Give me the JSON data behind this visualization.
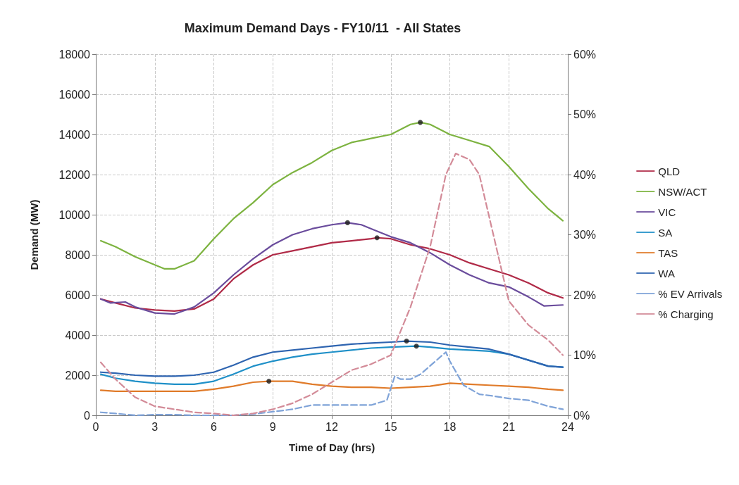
{
  "chart_data": {
    "type": "line",
    "title": "Maximum Demand Days - FY10/11  - All States",
    "xlabel": "Time of Day (hrs)",
    "ylabel": "Demand (MW)",
    "xlim": [
      0,
      24
    ],
    "xticks": [
      0,
      3,
      6,
      9,
      12,
      15,
      18,
      21,
      24
    ],
    "ylim": [
      0,
      18000
    ],
    "yticks": [
      0,
      2000,
      4000,
      6000,
      8000,
      10000,
      12000,
      14000,
      16000,
      18000
    ],
    "y2lim": [
      0,
      60
    ],
    "y2ticks": [
      {
        "value": 0,
        "label": "0%"
      },
      {
        "value": 10,
        "label": "10%"
      },
      {
        "value": 20,
        "label": "20%"
      },
      {
        "value": 30,
        "label": "30%"
      },
      {
        "value": 40,
        "label": "40%"
      },
      {
        "value": 50,
        "label": "50%"
      },
      {
        "value": 60,
        "label": "60%"
      }
    ],
    "grid": true,
    "legend": "right",
    "marker": "none",
    "line_style": "solid",
    "series": [
      {
        "name": "QLD",
        "color": "#b02a47",
        "x": [
          0.25,
          1,
          2,
          3,
          4,
          5,
          6,
          7,
          8,
          9,
          10,
          11,
          12,
          13,
          14,
          14.3,
          15,
          16,
          17,
          18,
          19,
          20,
          21,
          22,
          23,
          23.75
        ],
        "values": [
          5800,
          5600,
          5350,
          5250,
          5200,
          5300,
          5800,
          6800,
          7500,
          8000,
          8200,
          8400,
          8600,
          8700,
          8800,
          8850,
          8800,
          8500,
          8300,
          8000,
          7600,
          7300,
          7000,
          6600,
          6100,
          5850
        ]
      },
      {
        "name": "NSW/ACT",
        "color": "#7db340",
        "x": [
          0.25,
          1,
          2,
          3,
          3.5,
          4,
          5,
          6,
          7,
          8,
          9,
          10,
          11,
          12,
          13,
          14,
          15,
          16,
          16.5,
          17,
          18,
          19,
          20,
          21,
          22,
          23,
          23.75
        ],
        "values": [
          8700,
          8400,
          7900,
          7500,
          7300,
          7300,
          7700,
          8800,
          9800,
          10600,
          11500,
          12100,
          12600,
          13200,
          13600,
          13800,
          14000,
          14500,
          14600,
          14500,
          14000,
          13700,
          13400,
          12400,
          11300,
          10300,
          9700
        ]
      },
      {
        "name": "VIC",
        "color": "#6a4c9c",
        "x": [
          0.25,
          0.75,
          1.5,
          2,
          3,
          4,
          5,
          6,
          7,
          8,
          9,
          10,
          11,
          12,
          12.8,
          13.5,
          14,
          15,
          16,
          17,
          18,
          19,
          20,
          21,
          22,
          22.8,
          23.75
        ],
        "values": [
          5800,
          5600,
          5650,
          5400,
          5100,
          5050,
          5400,
          6100,
          7000,
          7800,
          8500,
          9000,
          9300,
          9500,
          9600,
          9500,
          9300,
          8900,
          8600,
          8100,
          7500,
          7000,
          6600,
          6400,
          5900,
          5450,
          5500
        ]
      },
      {
        "name": "SA",
        "color": "#1f90c8",
        "x": [
          0.25,
          1,
          2,
          3,
          4,
          5,
          6,
          7,
          8,
          9,
          10,
          11,
          12,
          13,
          14,
          15,
          16.3,
          17,
          18,
          19,
          20,
          21,
          22,
          23,
          23.75
        ],
        "values": [
          2050,
          1850,
          1700,
          1600,
          1550,
          1550,
          1700,
          2050,
          2450,
          2700,
          2900,
          3050,
          3150,
          3250,
          3350,
          3400,
          3450,
          3400,
          3300,
          3250,
          3200,
          3050,
          2750,
          2450,
          2400
        ]
      },
      {
        "name": "TAS",
        "color": "#e07b2a",
        "x": [
          0.25,
          1,
          2,
          3,
          4,
          5,
          6,
          7,
          8,
          8.8,
          10,
          11,
          12,
          13,
          14,
          15,
          16,
          17,
          18,
          19,
          20,
          21,
          22,
          23,
          23.75
        ],
        "values": [
          1250,
          1200,
          1200,
          1200,
          1200,
          1200,
          1300,
          1450,
          1650,
          1700,
          1700,
          1550,
          1450,
          1400,
          1400,
          1350,
          1400,
          1450,
          1600,
          1550,
          1500,
          1450,
          1400,
          1300,
          1250
        ]
      },
      {
        "name": "WA",
        "color": "#2e64b0",
        "x": [
          0.25,
          1,
          2,
          3,
          4,
          5,
          6,
          7,
          8,
          9,
          10,
          11,
          12,
          13,
          14,
          15,
          15.8,
          17,
          18,
          19,
          20,
          21,
          22,
          23,
          23.75
        ],
        "values": [
          2150,
          2100,
          2000,
          1950,
          1950,
          2000,
          2150,
          2500,
          2900,
          3150,
          3250,
          3350,
          3450,
          3550,
          3600,
          3650,
          3700,
          3650,
          3500,
          3400,
          3300,
          3050,
          2750,
          2450,
          2400
        ]
      },
      {
        "name": "% EV Arrivals",
        "color": "#7fa3d8",
        "axis": "y2",
        "line_style": "dashed",
        "x": [
          0.25,
          1,
          2,
          3,
          4,
          5,
          6,
          7,
          8,
          9,
          10,
          11,
          12,
          13,
          14,
          14.8,
          15.2,
          15.5,
          16,
          16.5,
          17.8,
          18,
          18.7,
          19.5,
          20,
          21,
          22,
          23,
          23.75
        ],
        "values": [
          0.5,
          0.3,
          0,
          0.1,
          0.1,
          0,
          0,
          0,
          0.2,
          0.6,
          1,
          1.7,
          1.7,
          1.7,
          1.7,
          2.5,
          6.5,
          6,
          6,
          6.8,
          10.5,
          9,
          5,
          3.5,
          3.3,
          2.8,
          2.5,
          1.5,
          1
        ]
      },
      {
        "name": "% Charging",
        "color": "#d38b98",
        "axis": "y2",
        "line_style": "dashed",
        "x": [
          0.25,
          1,
          2,
          3,
          4,
          5,
          6,
          7,
          8,
          9,
          10,
          11,
          12,
          13,
          14,
          15,
          16,
          17,
          17.8,
          18.3,
          19,
          19.5,
          20,
          21,
          22,
          23,
          23.75
        ],
        "values": [
          8.8,
          6,
          3,
          1.5,
          1,
          0.5,
          0.3,
          0,
          0.3,
          1,
          2,
          3.5,
          5.5,
          7.5,
          8.5,
          10,
          18,
          28,
          40,
          43.5,
          42.5,
          40,
          33,
          19,
          15,
          12.5,
          10
        ]
      },
      {
        "type": "scatter",
        "color": "#1a1a1a",
        "marker": "circle",
        "x": [
          16.5,
          12.8,
          14.3,
          15.8,
          16.3,
          8.8
        ],
        "values": [
          14600,
          9600,
          8850,
          3700,
          3450,
          1700
        ]
      }
    ]
  }
}
